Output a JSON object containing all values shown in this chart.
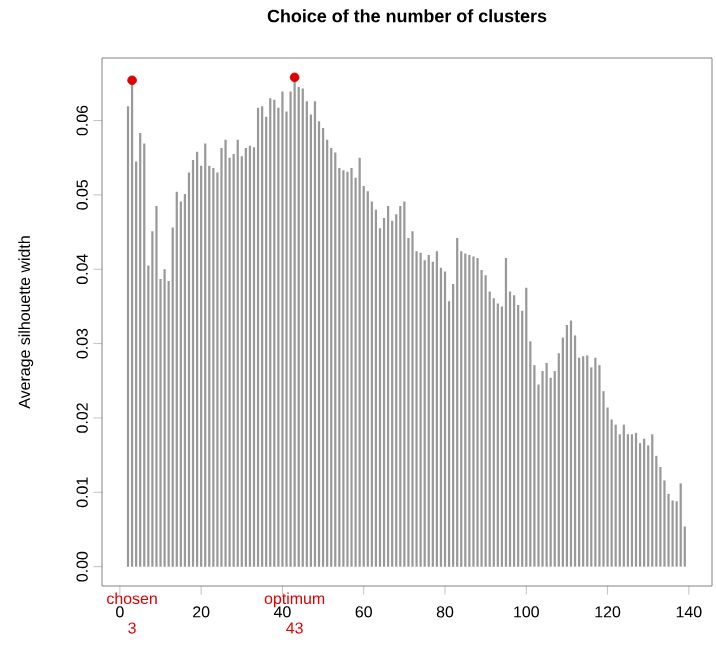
{
  "chart_data": {
    "type": "bar",
    "title": "Choice of the number of clusters",
    "ylabel": "Average silhouette width",
    "xlim": [
      -4.4,
      145.7
    ],
    "ylim": [
      -0.0026,
      0.0684
    ],
    "xticks": [
      0,
      20,
      40,
      60,
      80,
      100,
      120,
      140
    ],
    "yticks": [
      {
        "value": 0,
        "label": "0.00"
      },
      {
        "value": 0.01,
        "label": "0.01"
      },
      {
        "value": 0.02,
        "label": "0.02"
      },
      {
        "value": 0.03,
        "label": "0.03"
      },
      {
        "value": 0.04,
        "label": "0.04"
      },
      {
        "value": 0.05,
        "label": "0.05"
      },
      {
        "value": 0.06,
        "label": "0.06"
      }
    ],
    "series": [
      {
        "color": "#999999",
        "x": [
          2,
          3,
          4,
          5,
          6,
          7,
          8,
          9,
          10,
          11,
          12,
          13,
          14,
          15,
          16,
          17,
          18,
          19,
          20,
          21,
          22,
          23,
          24,
          25,
          26,
          27,
          28,
          29,
          30,
          31,
          32,
          33,
          34,
          35,
          36,
          37,
          38,
          39,
          40,
          41,
          42,
          43,
          44,
          45,
          46,
          47,
          48,
          49,
          50,
          51,
          52,
          53,
          54,
          55,
          56,
          57,
          58,
          59,
          60,
          61,
          62,
          63,
          64,
          65,
          66,
          67,
          68,
          69,
          70,
          71,
          72,
          73,
          74,
          75,
          76,
          77,
          78,
          79,
          80,
          81,
          82,
          83,
          84,
          85,
          86,
          87,
          88,
          89,
          90,
          91,
          92,
          93,
          94,
          95,
          96,
          97,
          98,
          99,
          100,
          101,
          102,
          103,
          104,
          105,
          106,
          107,
          108,
          109,
          110,
          111,
          112,
          113,
          114,
          115,
          116,
          117,
          118,
          119,
          120,
          121,
          122,
          123,
          124,
          125,
          126,
          127,
          128,
          129,
          130,
          131,
          132,
          133,
          134,
          135,
          136,
          137,
          138,
          139
        ],
        "values": [
          0.0619,
          0.0654,
          0.0545,
          0.0583,
          0.0569,
          0.0405,
          0.0451,
          0.0485,
          0.0387,
          0.04,
          0.0384,
          0.0456,
          0.0504,
          0.0491,
          0.0501,
          0.053,
          0.0547,
          0.0558,
          0.0539,
          0.0569,
          0.0539,
          0.0536,
          0.053,
          0.0563,
          0.0574,
          0.055,
          0.0555,
          0.0574,
          0.0552,
          0.0563,
          0.0566,
          0.0564,
          0.0617,
          0.0619,
          0.0605,
          0.063,
          0.0628,
          0.0617,
          0.0639,
          0.0612,
          0.0639,
          0.0658,
          0.0645,
          0.0643,
          0.0626,
          0.0608,
          0.0626,
          0.0599,
          0.059,
          0.0574,
          0.0563,
          0.0557,
          0.0536,
          0.0533,
          0.0531,
          0.0536,
          0.0523,
          0.055,
          0.0512,
          0.0505,
          0.0491,
          0.048,
          0.0455,
          0.0469,
          0.0485,
          0.0465,
          0.0474,
          0.0485,
          0.0491,
          0.0442,
          0.0451,
          0.0424,
          0.0422,
          0.0412,
          0.0419,
          0.041,
          0.0424,
          0.0402,
          0.0397,
          0.0357,
          0.038,
          0.0442,
          0.0424,
          0.0421,
          0.0419,
          0.0417,
          0.0415,
          0.0399,
          0.0392,
          0.037,
          0.0361,
          0.0354,
          0.035,
          0.0415,
          0.037,
          0.0365,
          0.0352,
          0.0344,
          0.0375,
          0.0303,
          0.0271,
          0.0245,
          0.0263,
          0.0274,
          0.0254,
          0.0263,
          0.0287,
          0.0308,
          0.0325,
          0.0331,
          0.0311,
          0.0281,
          0.0283,
          0.0284,
          0.0268,
          0.0281,
          0.0271,
          0.0236,
          0.0214,
          0.0198,
          0.0191,
          0.0178,
          0.0191,
          0.0178,
          0.0178,
          0.018,
          0.0166,
          0.0172,
          0.0163,
          0.0178,
          0.0149,
          0.0134,
          0.0116,
          0.0098,
          0.0089,
          0.0088,
          0.0112,
          0.0054
        ]
      },
      {
        "type": "scatter",
        "marker": "circle",
        "color": "#e00000",
        "x": [
          3,
          43
        ],
        "values": [
          0.0654,
          0.0658
        ]
      }
    ],
    "annotations": [
      "chosen",
      "3",
      "optimum",
      "43"
    ]
  }
}
